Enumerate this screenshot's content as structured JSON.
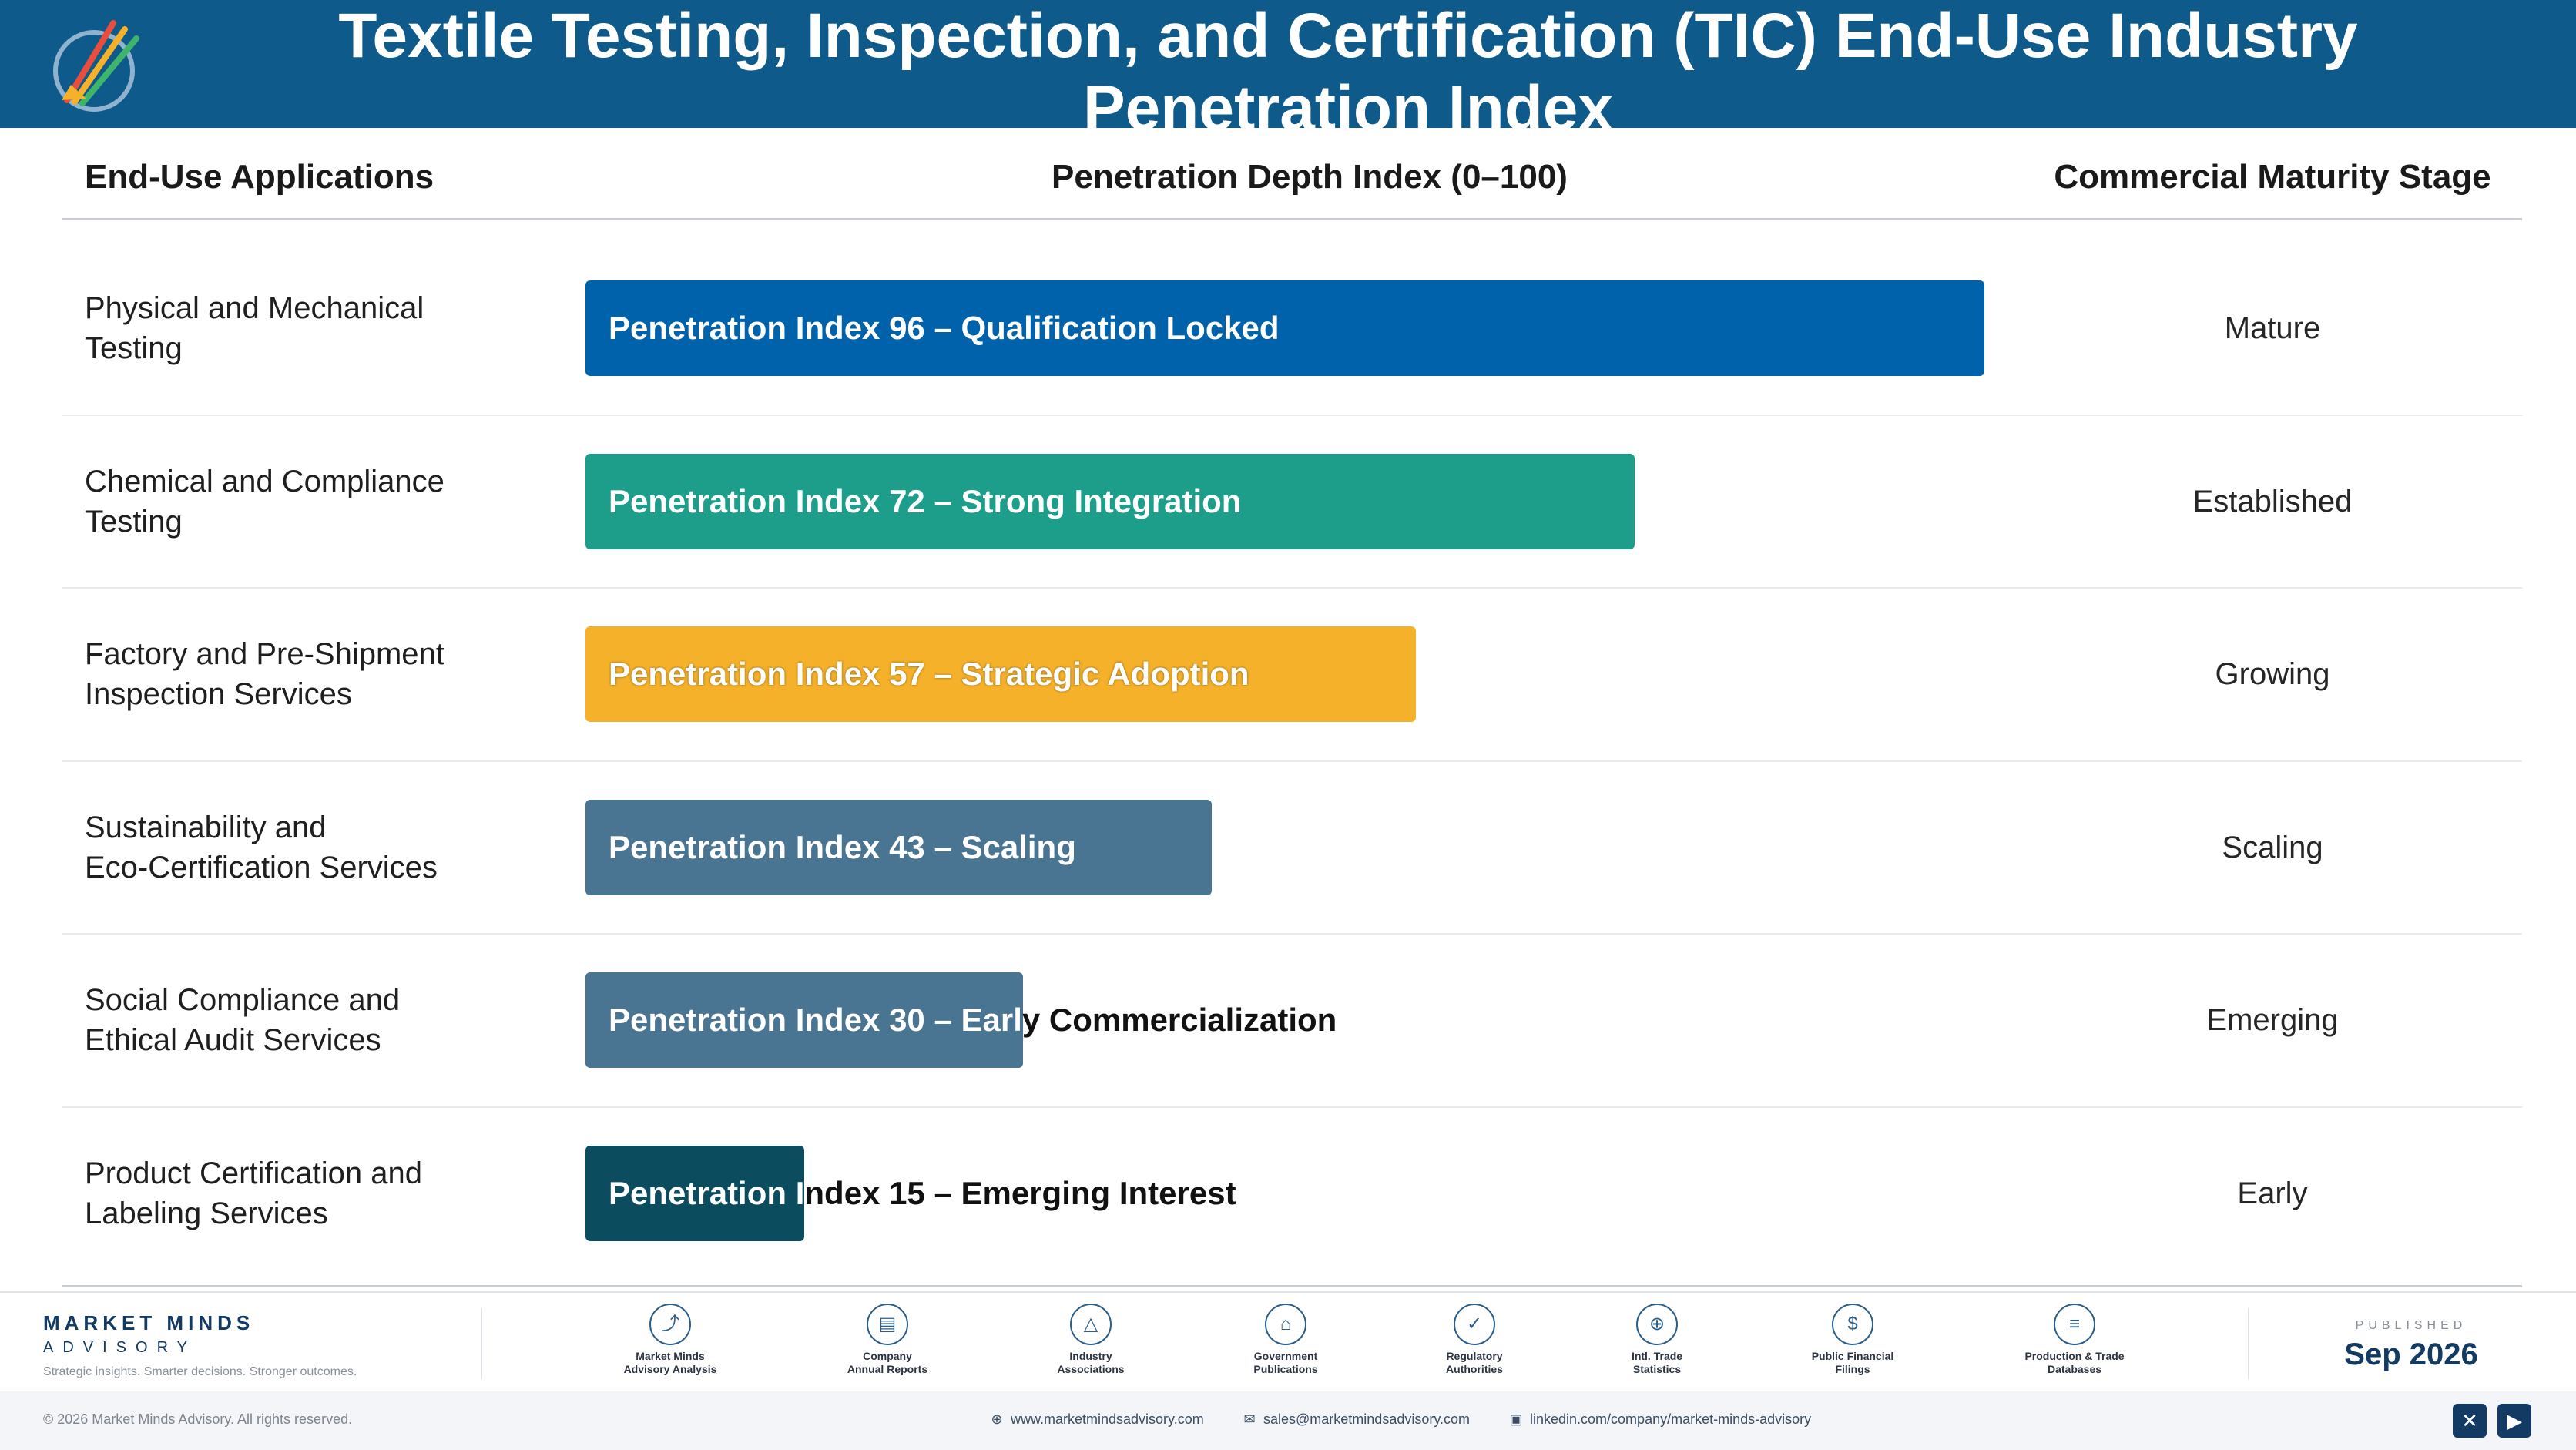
{
  "header": {
    "title_line1": "Textile Testing, Inspection, and Certification (TIC) End-Use Industry",
    "title_line2": "Penetration Index"
  },
  "columns": {
    "applications": "End-Use Applications",
    "index": "Penetration Depth Index (0–100)",
    "stage": "Commercial Maturity Stage"
  },
  "chart_data": {
    "type": "bar",
    "orientation": "horizontal",
    "xlabel": "Penetration Depth Index (0–100)",
    "xlim": [
      0,
      100
    ],
    "categories": [
      [
        "Physical and Mechanical",
        "Testing"
      ],
      [
        "Chemical and Compliance",
        "Testing"
      ],
      [
        "Factory and Pre-Shipment",
        "Inspection Services"
      ],
      [
        "Sustainability and",
        "Eco-Certification Services"
      ],
      [
        "Social Compliance and",
        "Ethical Audit Services"
      ],
      [
        "Product Certification and",
        "Labeling Services"
      ]
    ],
    "values": [
      96,
      72,
      57,
      43,
      30,
      15
    ],
    "bar_labels": [
      "Penetration Index 96 – Qualification Locked",
      "Penetration Index 72 – Strong Integration",
      "Penetration Index 57 – Strategic Adoption",
      "Penetration Index 43 – Scaling",
      "Penetration Index 30 – Early Commercialization",
      "Penetration Index 15 – Emerging Interest"
    ],
    "stages": [
      "Mature",
      "Established",
      "Growing",
      "Scaling",
      "Emerging",
      "Early"
    ],
    "colors": [
      "#0062aa",
      "#1d9e8a",
      "#f5b12a",
      "#4a7592",
      "#4a7592",
      "#0c4c5f"
    ],
    "grid": false,
    "legend": "none"
  },
  "footer": {
    "brand": "MARKET MINDS",
    "brand_sub": "ADVISORY",
    "tagline": "Strategic insights. Smarter decisions. Stronger outcomes.",
    "sources": [
      {
        "line1": "Market Minds",
        "line2": "Advisory Analysis",
        "icon": "trend-line-icon"
      },
      {
        "line1": "Company",
        "line2": "Annual Reports",
        "icon": "document-icon"
      },
      {
        "line1": "Industry",
        "line2": "Associations",
        "icon": "network-icon"
      },
      {
        "line1": "Government",
        "line2": "Publications",
        "icon": "government-building-icon"
      },
      {
        "line1": "Regulatory",
        "line2": "Authorities",
        "icon": "shield-check-icon"
      },
      {
        "line1": "Intl. Trade",
        "line2": "Statistics",
        "icon": "globe-icon"
      },
      {
        "line1": "Public Financial",
        "line2": "Filings",
        "icon": "currency-icon"
      },
      {
        "line1": "Production & Trade",
        "line2": "Databases",
        "icon": "database-icon"
      }
    ],
    "published_label": "PUBLISHED",
    "published_date": "Sep 2026",
    "copyright": "© 2026 Market Minds Advisory. All rights reserved.",
    "website": "www.marketmindsadvisory.com",
    "email": "sales@marketmindsadvisory.com",
    "linkedin": "linkedin.com/company/market-minds-advisory"
  }
}
